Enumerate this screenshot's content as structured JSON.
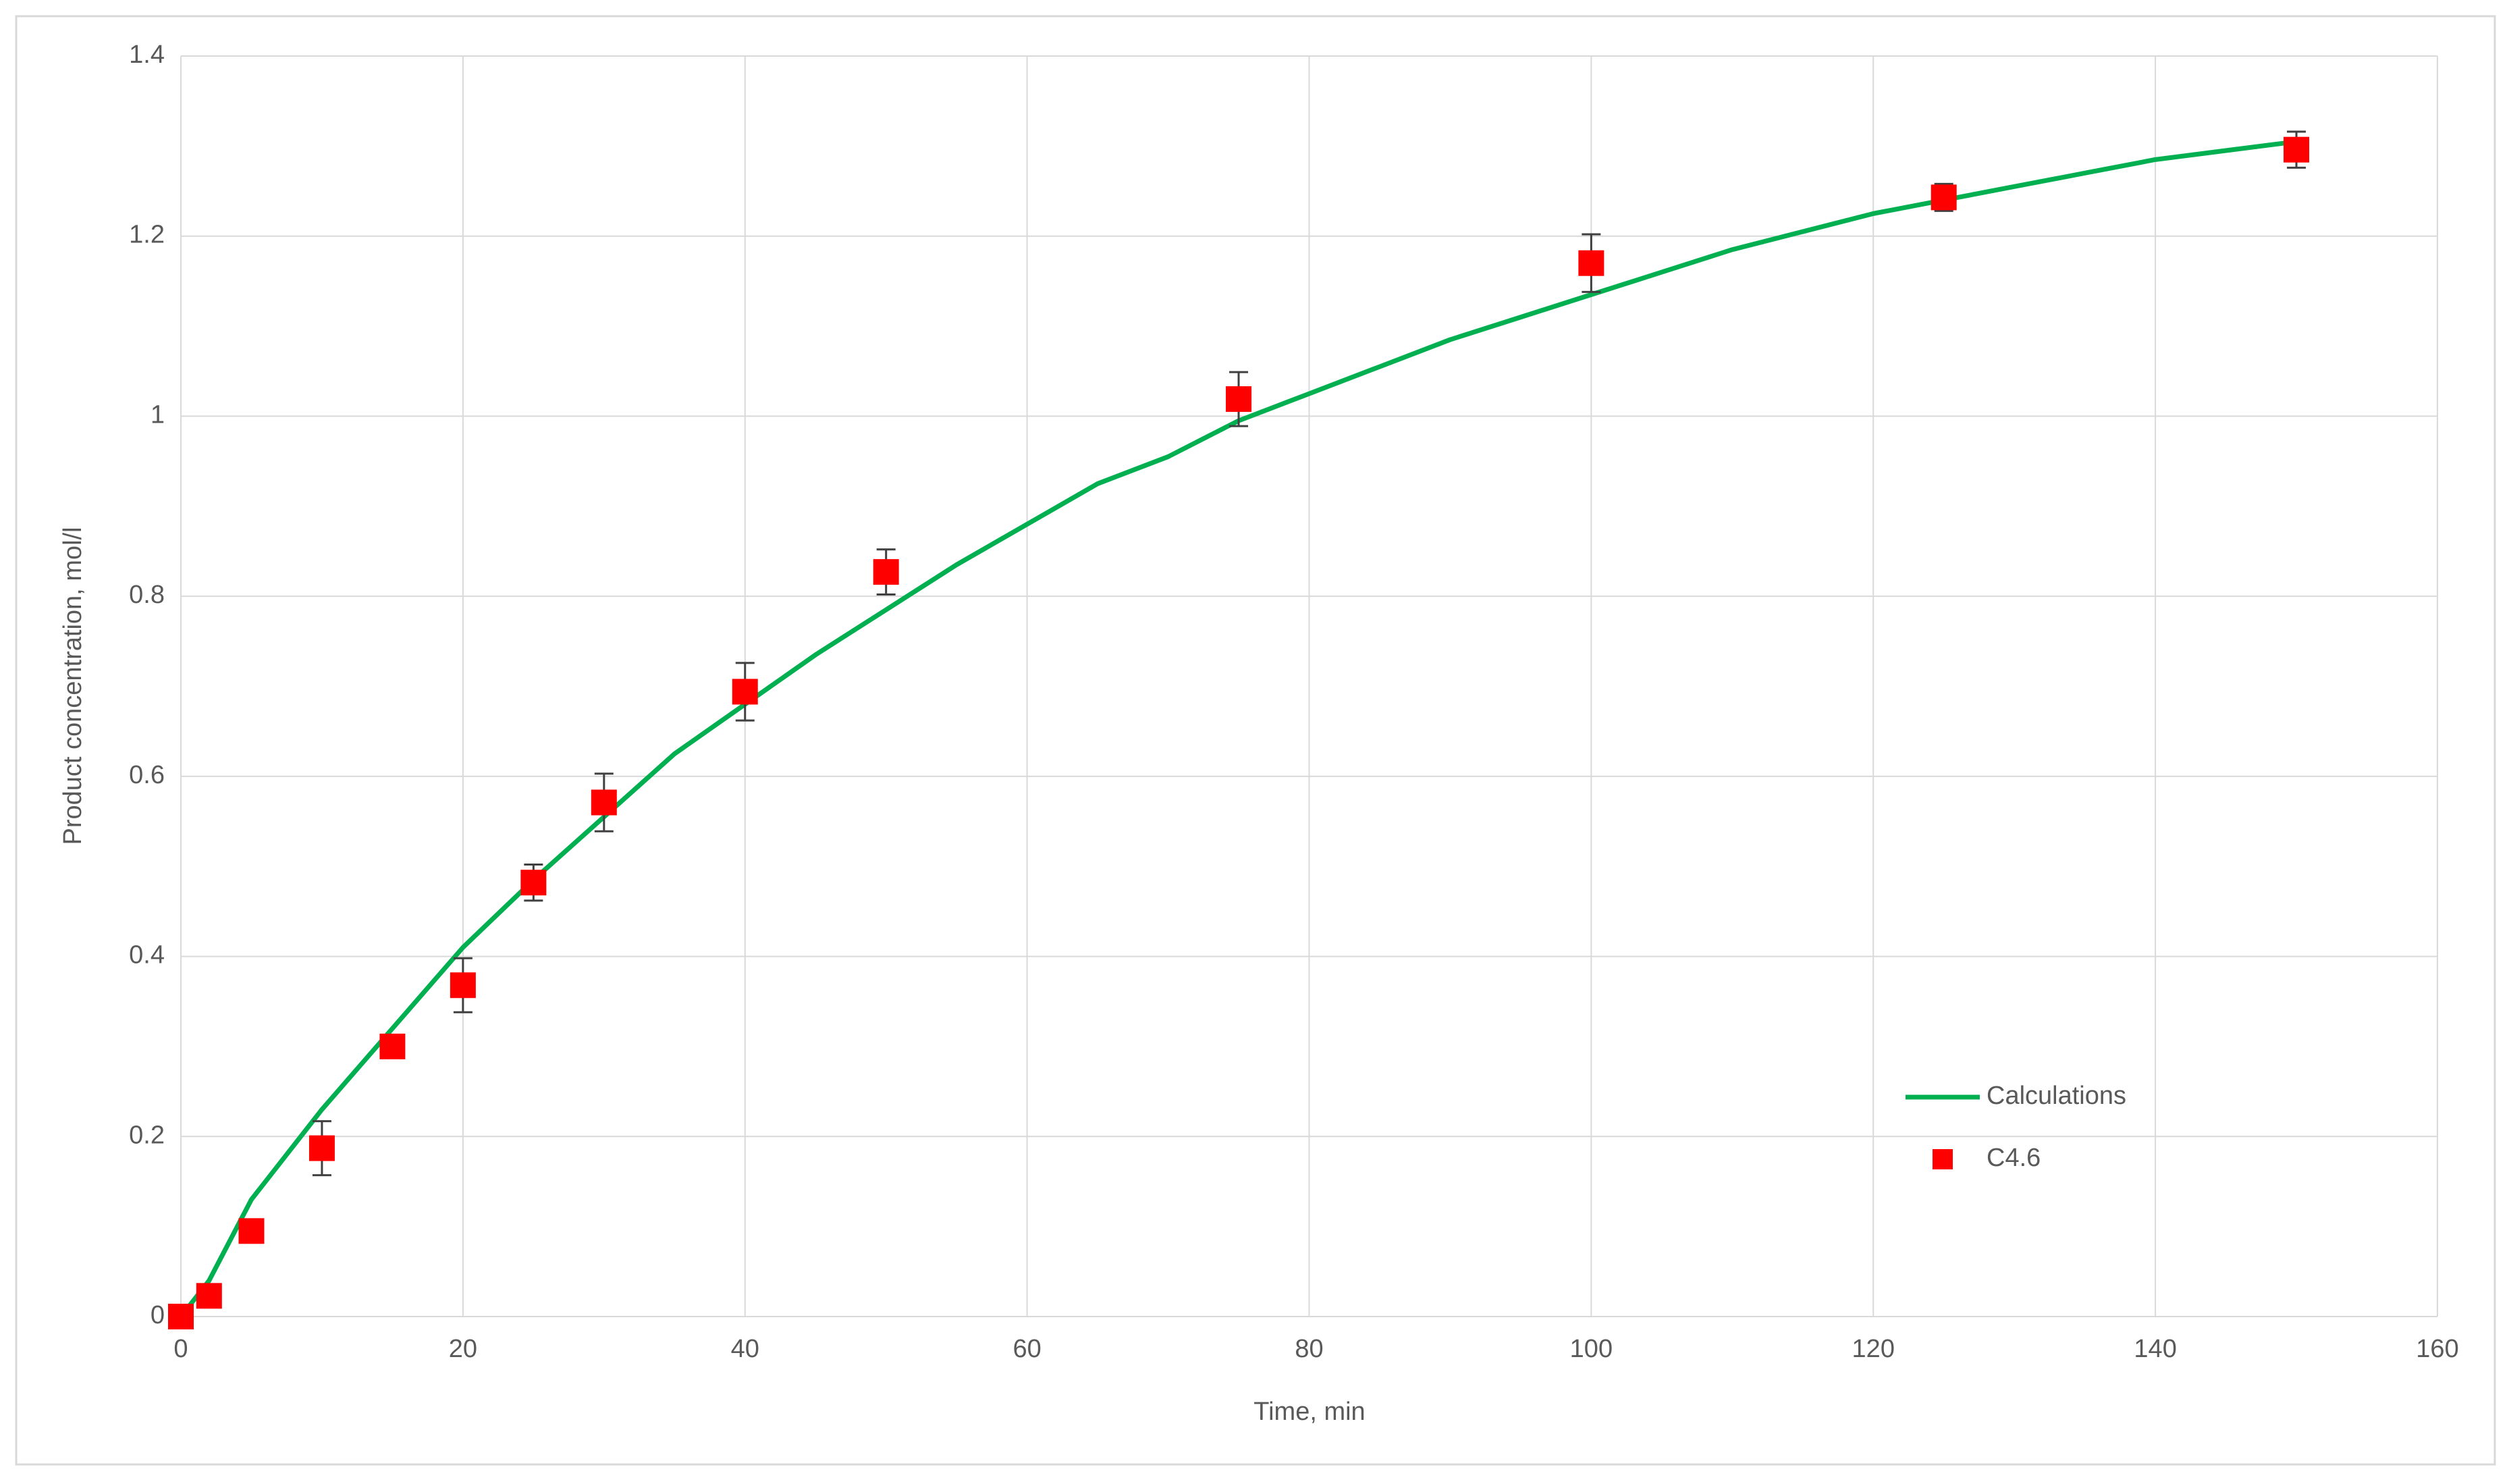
{
  "chart_data": {
    "type": "line-scatter",
    "x_label": "Time, min",
    "y_label": "Product concentration, mol/l",
    "xlim": [
      0,
      160
    ],
    "xticks": [
      0,
      20,
      40,
      60,
      80,
      100,
      120,
      140,
      160
    ],
    "ylim": [
      0,
      1.4
    ],
    "yticks": [
      0,
      0.2,
      0.4,
      0.6,
      0.8,
      1,
      1.2,
      1.4
    ],
    "grid": true,
    "legend": "lower-right",
    "series": [
      {
        "name": "Calculations",
        "color": "#00b050",
        "kind": "line",
        "x": [
          0,
          2,
          5,
          10,
          15,
          20,
          25,
          30,
          35,
          40,
          45,
          50,
          55,
          60,
          65,
          70,
          75,
          80,
          85,
          90,
          95,
          100,
          105,
          110,
          115,
          120,
          125,
          130,
          135,
          140,
          145,
          150
        ],
        "values": [
          0,
          0.04,
          0.13,
          0.23,
          0.32,
          0.41,
          0.485,
          0.555,
          0.625,
          0.68,
          0.735,
          0.785,
          0.835,
          0.88,
          0.925,
          0.955,
          0.995,
          1.025,
          1.055,
          1.085,
          1.11,
          1.135,
          1.16,
          1.185,
          1.205,
          1.225,
          1.24,
          1.255,
          1.27,
          1.285,
          1.295,
          1.305
        ]
      },
      {
        "name": "C4.6",
        "color": "#ff0000",
        "kind": "scatter",
        "x": [
          0,
          2,
          5,
          10,
          15,
          20,
          25,
          30,
          40,
          50,
          75,
          100,
          125,
          150
        ],
        "values": [
          0,
          0.023,
          0.095,
          0.187,
          0.3,
          0.368,
          0.482,
          0.571,
          0.694,
          0.827,
          1.019,
          1.17,
          1.243,
          1.296
        ],
        "errors": [
          0.005,
          0.005,
          0.005,
          0.03,
          0.005,
          0.03,
          0.02,
          0.032,
          0.032,
          0.025,
          0.03,
          0.032,
          0.015,
          0.02
        ]
      }
    ]
  }
}
